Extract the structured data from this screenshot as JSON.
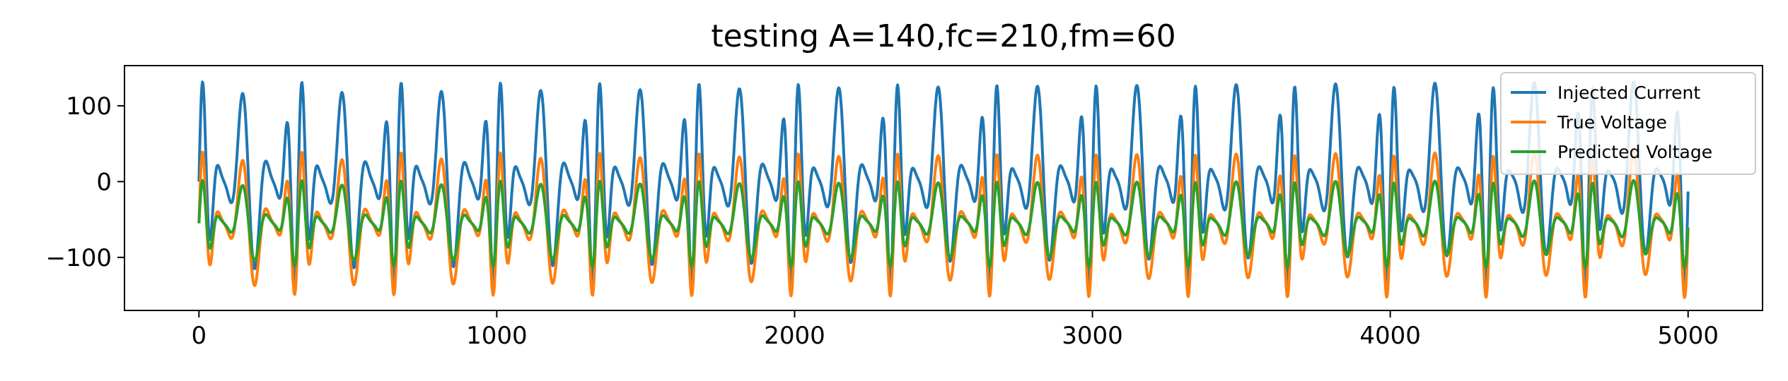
{
  "chart_data": {
    "type": "line",
    "title": "testing A=140,fc=210,fm=60",
    "xlabel": "",
    "ylabel": "",
    "xlim": [
      -250,
      5250
    ],
    "ylim": [
      -170,
      153
    ],
    "x_ticks": [
      0,
      1000,
      2000,
      3000,
      4000,
      5000
    ],
    "x_tick_labels": [
      "0",
      "1000",
      "2000",
      "3000",
      "4000",
      "5000"
    ],
    "y_ticks": [
      100,
      0,
      -100
    ],
    "y_tick_labels": [
      "100",
      "0",
      "−100"
    ],
    "grid": false,
    "legend_position": "top-right",
    "x_range": [
      0,
      5000
    ],
    "series": [
      {
        "name": "Injected Current",
        "color": "#1f77b4",
        "model": "sine-modulated-carrier",
        "amplitude": 140,
        "carrier_period": 66.7,
        "modulation_period": 333,
        "offset": 0
      },
      {
        "name": "True Voltage",
        "color": "#ff7f0e",
        "model": "sine-modulated-carrier",
        "amplitude": 100,
        "carrier_period": 66.7,
        "modulation_period": 333,
        "offset": -55
      },
      {
        "name": "Predicted Voltage",
        "color": "#2ca02c",
        "model": "sine-modulated-carrier",
        "amplitude": 60,
        "carrier_period": 66.7,
        "modulation_period": 333,
        "offset": -55
      }
    ]
  }
}
